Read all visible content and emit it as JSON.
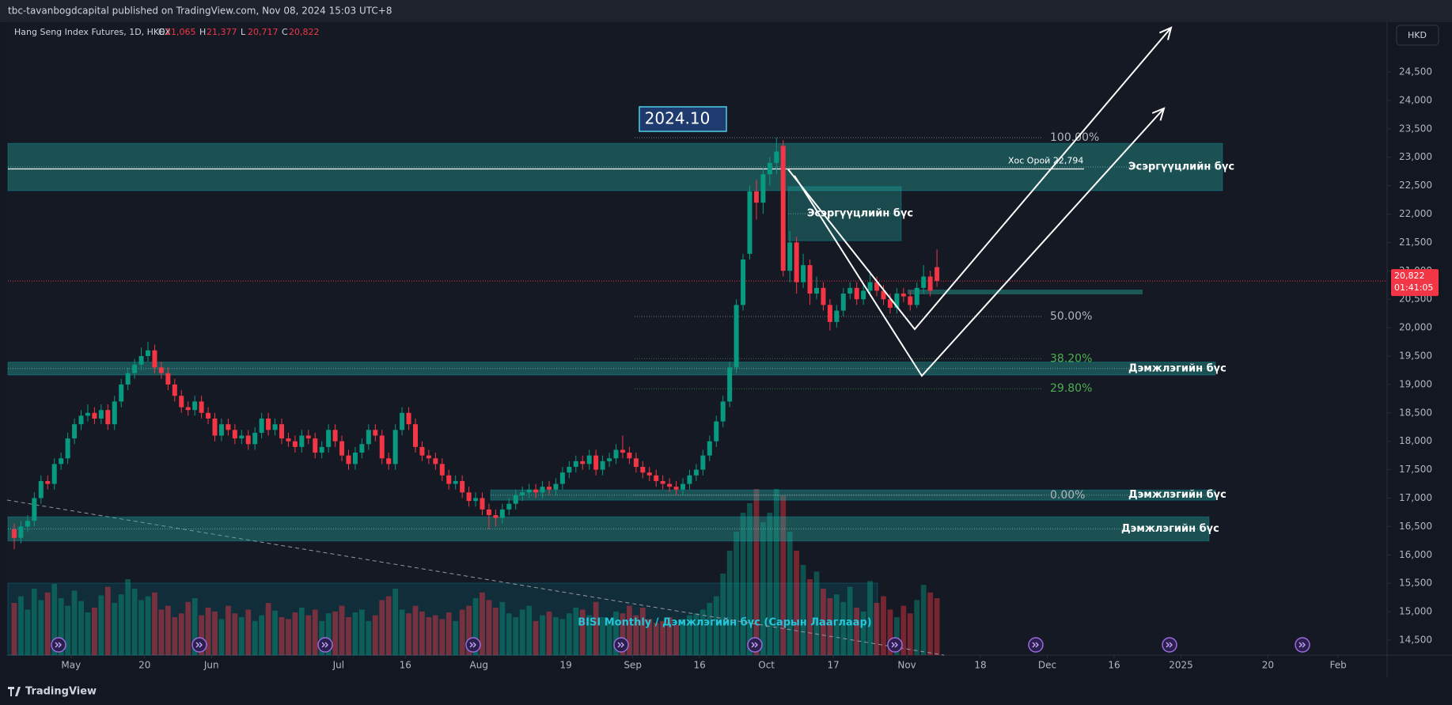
{
  "chart_data": {
    "type": "candlestick",
    "publisher": "tbc-tavanbogdcapital published on TradingView.com, Nov 08, 2024 15:03 UTC+8",
    "symbol": "Hang Seng Index Futures, 1D, HKEX",
    "ohlc_header": [
      {
        "key": "O",
        "text": "21,065"
      },
      {
        "key": "H",
        "text": "21,377"
      },
      {
        "key": "L",
        "text": "20,717"
      },
      {
        "key": "C",
        "text": "20,822"
      }
    ],
    "currency": "HKD",
    "footer": "TradingView",
    "candles": [
      [
        16450,
        16550,
        16100,
        16300
      ],
      [
        16300,
        16600,
        16200,
        16500
      ],
      [
        16500,
        16700,
        16400,
        16600
      ],
      [
        16600,
        17100,
        16500,
        17000
      ],
      [
        17000,
        17400,
        16900,
        17300
      ],
      [
        17300,
        17400,
        17150,
        17250
      ],
      [
        17250,
        17700,
        17150,
        17600
      ],
      [
        17600,
        17800,
        17500,
        17700
      ],
      [
        17700,
        18150,
        17600,
        18050
      ],
      [
        18050,
        18400,
        17950,
        18300
      ],
      [
        18300,
        18550,
        18200,
        18450
      ],
      [
        18450,
        18650,
        18350,
        18500
      ],
      [
        18500,
        18600,
        18300,
        18400
      ],
      [
        18400,
        18650,
        18300,
        18550
      ],
      [
        18550,
        18650,
        18200,
        18300
      ],
      [
        18300,
        18800,
        18200,
        18700
      ],
      [
        18700,
        19100,
        18600,
        19000
      ],
      [
        19000,
        19300,
        18900,
        19200
      ],
      [
        19200,
        19450,
        19100,
        19350
      ],
      [
        19350,
        19650,
        19250,
        19500
      ],
      [
        19500,
        19750,
        19400,
        19600
      ],
      [
        19600,
        19700,
        19200,
        19300
      ],
      [
        19300,
        19400,
        19100,
        19200
      ],
      [
        19200,
        19300,
        18900,
        19000
      ],
      [
        19000,
        19100,
        18700,
        18800
      ],
      [
        18800,
        18900,
        18500,
        18600
      ],
      [
        18600,
        18700,
        18450,
        18550
      ],
      [
        18550,
        18800,
        18450,
        18700
      ],
      [
        18700,
        18800,
        18400,
        18500
      ],
      [
        18500,
        18600,
        18300,
        18400
      ],
      [
        18400,
        18500,
        18000,
        18100
      ],
      [
        18100,
        18400,
        18000,
        18300
      ],
      [
        18300,
        18400,
        18100,
        18200
      ],
      [
        18200,
        18300,
        17950,
        18050
      ],
      [
        18050,
        18200,
        17950,
        18100
      ],
      [
        18100,
        18200,
        17850,
        17950
      ],
      [
        17950,
        18250,
        17850,
        18150
      ],
      [
        18150,
        18500,
        18050,
        18400
      ],
      [
        18400,
        18500,
        18100,
        18200
      ],
      [
        18200,
        18400,
        18100,
        18300
      ],
      [
        18300,
        18400,
        17950,
        18050
      ],
      [
        18050,
        18150,
        17900,
        18000
      ],
      [
        18000,
        18100,
        17800,
        17900
      ],
      [
        17900,
        18200,
        17800,
        18100
      ],
      [
        18100,
        18200,
        17950,
        18050
      ],
      [
        18050,
        18150,
        17700,
        17800
      ],
      [
        17800,
        18000,
        17700,
        17900
      ],
      [
        17900,
        18300,
        17800,
        18200
      ],
      [
        18200,
        18300,
        17900,
        18000
      ],
      [
        18000,
        18100,
        17650,
        17750
      ],
      [
        17750,
        17850,
        17500,
        17600
      ],
      [
        17600,
        17900,
        17500,
        17800
      ],
      [
        17800,
        18050,
        17700,
        17950
      ],
      [
        17950,
        18300,
        17850,
        18200
      ],
      [
        18200,
        18300,
        18000,
        18100
      ],
      [
        18100,
        18200,
        17600,
        17700
      ],
      [
        17700,
        17800,
        17500,
        17600
      ],
      [
        17600,
        18300,
        17500,
        18200
      ],
      [
        18200,
        18600,
        18100,
        18500
      ],
      [
        18500,
        18600,
        18200,
        18300
      ],
      [
        18300,
        18400,
        17800,
        17900
      ],
      [
        17900,
        18000,
        17650,
        17750
      ],
      [
        17750,
        17850,
        17600,
        17700
      ],
      [
        17700,
        17800,
        17500,
        17600
      ],
      [
        17600,
        17700,
        17300,
        17400
      ],
      [
        17400,
        17500,
        17150,
        17250
      ],
      [
        17250,
        17400,
        17150,
        17300
      ],
      [
        17300,
        17400,
        17000,
        17100
      ],
      [
        17100,
        17200,
        16850,
        16950
      ],
      [
        16950,
        17100,
        16850,
        17000
      ],
      [
        17000,
        17100,
        16700,
        16800
      ],
      [
        16800,
        16900,
        16450,
        16700
      ],
      [
        16700,
        16800,
        16500,
        16650
      ],
      [
        16650,
        16900,
        16550,
        16800
      ],
      [
        16800,
        17000,
        16700,
        16900
      ],
      [
        16900,
        17150,
        16800,
        17050
      ],
      [
        17050,
        17200,
        16950,
        17100
      ],
      [
        17100,
        17250,
        17000,
        17150
      ],
      [
        17150,
        17250,
        17000,
        17100
      ],
      [
        17100,
        17300,
        17000,
        17200
      ],
      [
        17200,
        17300,
        17050,
        17150
      ],
      [
        17150,
        17350,
        17050,
        17250
      ],
      [
        17250,
        17550,
        17150,
        17450
      ],
      [
        17450,
        17650,
        17350,
        17550
      ],
      [
        17550,
        17750,
        17450,
        17650
      ],
      [
        17650,
        17750,
        17500,
        17600
      ],
      [
        17600,
        17850,
        17500,
        17750
      ],
      [
        17750,
        17850,
        17400,
        17500
      ],
      [
        17500,
        17750,
        17400,
        17650
      ],
      [
        17650,
        17800,
        17550,
        17700
      ],
      [
        17700,
        17950,
        17600,
        17850
      ],
      [
        17850,
        18100,
        17700,
        17800
      ],
      [
        17800,
        17900,
        17600,
        17700
      ],
      [
        17700,
        17800,
        17450,
        17550
      ],
      [
        17550,
        17650,
        17350,
        17450
      ],
      [
        17450,
        17550,
        17300,
        17400
      ],
      [
        17400,
        17500,
        17200,
        17300
      ],
      [
        17300,
        17400,
        17150,
        17250
      ],
      [
        17250,
        17350,
        17100,
        17200
      ],
      [
        17200,
        17300,
        17050,
        17150
      ],
      [
        17150,
        17350,
        17050,
        17250
      ],
      [
        17250,
        17500,
        17150,
        17400
      ],
      [
        17400,
        17600,
        17300,
        17500
      ],
      [
        17500,
        17850,
        17400,
        17750
      ],
      [
        17750,
        18100,
        17650,
        18000
      ],
      [
        18000,
        18450,
        17900,
        18350
      ],
      [
        18350,
        18800,
        18250,
        18700
      ],
      [
        18700,
        19400,
        18600,
        19300
      ],
      [
        19300,
        20500,
        19200,
        20400
      ],
      [
        20400,
        21300,
        20300,
        21200
      ],
      [
        21300,
        22500,
        21200,
        22400
      ],
      [
        22400,
        22600,
        21900,
        22200
      ],
      [
        22200,
        22800,
        22000,
        22700
      ],
      [
        22700,
        23000,
        22500,
        22900
      ],
      [
        22900,
        23344,
        22700,
        23100
      ],
      [
        23200,
        23300,
        20900,
        21000
      ],
      [
        21000,
        21700,
        20800,
        21500
      ],
      [
        21500,
        21600,
        20600,
        20800
      ],
      [
        20800,
        21300,
        20700,
        21100
      ],
      [
        21100,
        21200,
        20400,
        20600
      ],
      [
        20600,
        20900,
        20500,
        20700
      ],
      [
        20700,
        20800,
        20300,
        20400
      ],
      [
        20400,
        20500,
        19950,
        20100
      ],
      [
        20100,
        20400,
        20000,
        20300
      ],
      [
        20300,
        20700,
        20200,
        20600
      ],
      [
        20600,
        20800,
        20500,
        20700
      ],
      [
        20700,
        20800,
        20400,
        20500
      ],
      [
        20500,
        20750,
        20400,
        20650
      ],
      [
        20650,
        21000,
        20550,
        20800
      ],
      [
        20800,
        20900,
        20550,
        20650
      ],
      [
        20650,
        20750,
        20400,
        20500
      ],
      [
        20500,
        20600,
        20250,
        20350
      ],
      [
        20350,
        20700,
        20250,
        20600
      ],
      [
        20600,
        20700,
        20450,
        20550
      ],
      [
        20550,
        20650,
        20300,
        20400
      ],
      [
        20400,
        20800,
        20350,
        20700
      ],
      [
        20700,
        21100,
        20600,
        20900
      ],
      [
        20900,
        21000,
        20550,
        20650
      ],
      [
        21065,
        21377,
        20717,
        20822
      ]
    ],
    "volume": [
      55,
      62,
      48,
      70,
      58,
      66,
      75,
      60,
      52,
      68,
      57,
      45,
      50,
      63,
      72,
      55,
      64,
      80,
      70,
      58,
      62,
      66,
      48,
      52,
      40,
      44,
      56,
      60,
      42,
      50,
      46,
      38,
      52,
      44,
      40,
      48,
      36,
      42,
      55,
      47,
      40,
      38,
      45,
      50,
      42,
      48,
      36,
      44,
      46,
      52,
      40,
      45,
      48,
      36,
      42,
      58,
      62,
      70,
      48,
      44,
      52,
      46,
      40,
      42,
      38,
      45,
      36,
      48,
      52,
      60,
      66,
      58,
      50,
      56,
      44,
      40,
      48,
      52,
      36,
      42,
      46,
      40,
      38,
      44,
      50,
      48,
      42,
      56,
      40,
      35,
      46,
      44,
      52,
      42,
      50,
      38,
      34,
      36,
      40,
      32,
      38,
      42,
      44,
      48,
      55,
      62,
      86,
      110,
      130,
      150,
      160,
      175,
      140,
      150,
      175,
      168,
      130,
      110,
      95,
      80,
      88,
      70,
      60,
      64,
      56,
      72,
      50,
      46,
      78,
      55,
      62,
      48,
      40,
      52,
      44,
      58,
      74,
      66,
      60
    ],
    "up_color": "#089981",
    "down_color": "#f23645",
    "ylim": [
      14500,
      24500
    ],
    "yticks": [
      {
        "value": 14500,
        "label": "14,500"
      },
      {
        "value": 15000,
        "label": "15,000"
      },
      {
        "value": 15500,
        "label": "15,500"
      },
      {
        "value": 16000,
        "label": "16,000"
      },
      {
        "value": 16500,
        "label": "16,500"
      },
      {
        "value": 17000,
        "label": "17,000"
      },
      {
        "value": 17500,
        "label": "17,500"
      },
      {
        "value": 18000,
        "label": "18,000"
      },
      {
        "value": 18500,
        "label": "18,500"
      },
      {
        "value": 19000,
        "label": "19,000"
      },
      {
        "value": 19500,
        "label": "19,500"
      },
      {
        "value": 20000,
        "label": "20,000"
      },
      {
        "value": 20500,
        "label": "20,500"
      },
      {
        "value": 21000,
        "label": "21,000"
      },
      {
        "value": 21500,
        "label": "21,500"
      },
      {
        "value": 22000,
        "label": "22,000"
      },
      {
        "value": 22500,
        "label": "22,500"
      },
      {
        "value": 23000,
        "label": "23,000"
      },
      {
        "value": 23500,
        "label": "23,500"
      },
      {
        "value": 24000,
        "label": "24,000"
      },
      {
        "value": 24500,
        "label": "24,500"
      }
    ],
    "xticks": [
      {
        "value": 8.5,
        "label": "May"
      },
      {
        "value": 19.5,
        "label": "20"
      },
      {
        "value": 29.5,
        "label": "Jun"
      },
      {
        "value": 48.5,
        "label": "Jul"
      },
      {
        "value": 58.5,
        "label": "16"
      },
      {
        "value": 69.5,
        "label": "Aug"
      },
      {
        "value": 82.5,
        "label": "19"
      },
      {
        "value": 92.5,
        "label": "Sep"
      },
      {
        "value": 102.5,
        "label": "16"
      },
      {
        "value": 112.5,
        "label": "Oct"
      },
      {
        "value": 122.5,
        "label": "17"
      },
      {
        "value": 133.5,
        "label": "Nov"
      },
      {
        "value": 144.5,
        "label": "18"
      },
      {
        "value": 154.5,
        "label": "Dec"
      },
      {
        "value": 164.5,
        "label": "16"
      },
      {
        "value": 174.5,
        "label": "2025"
      },
      {
        "value": 187.5,
        "label": "20"
      },
      {
        "value": 198,
        "label": "Feb"
      }
    ],
    "last_price": {
      "value": 20822,
      "label": "20,822"
    },
    "countdown": "01:41:05",
    "date_note": "2024.10",
    "double_top": {
      "label": "Хос Орой 22,794",
      "price": 22794
    },
    "zones": [
      {
        "label": "Эсэргүүцлийн бүс",
        "top": 23244,
        "bottom": 22412
      },
      {
        "label": "Эсэргүүцлийн бүс",
        "top": 22480,
        "bottom": 21530
      },
      {
        "label": "Дэмжлэгийн бүс",
        "top": 19394,
        "bottom": 19166
      },
      {
        "label": "Дэмжлэгийн бүс",
        "top": 17143,
        "bottom": 16963
      },
      {
        "label": "Дэмжлэгийн бүс",
        "top": 16670,
        "bottom": 16245
      }
    ],
    "fib_levels": [
      {
        "label": "100.00%",
        "price": 23344,
        "color": "#b2b5be"
      },
      {
        "label": "50.00%",
        "price": 20197,
        "color": "#b2b5be"
      },
      {
        "label": "38.20%",
        "price": 19454,
        "color": "#4caf50"
      },
      {
        "label": "29.80%",
        "price": 18926,
        "color": "#4caf50"
      },
      {
        "label": "0.00%",
        "price": 17050,
        "color": "#b2b5be"
      }
    ],
    "volume_note": "BISI Monthly / Дэмжлэгийн бүс (Сарын Лааглаар)"
  }
}
